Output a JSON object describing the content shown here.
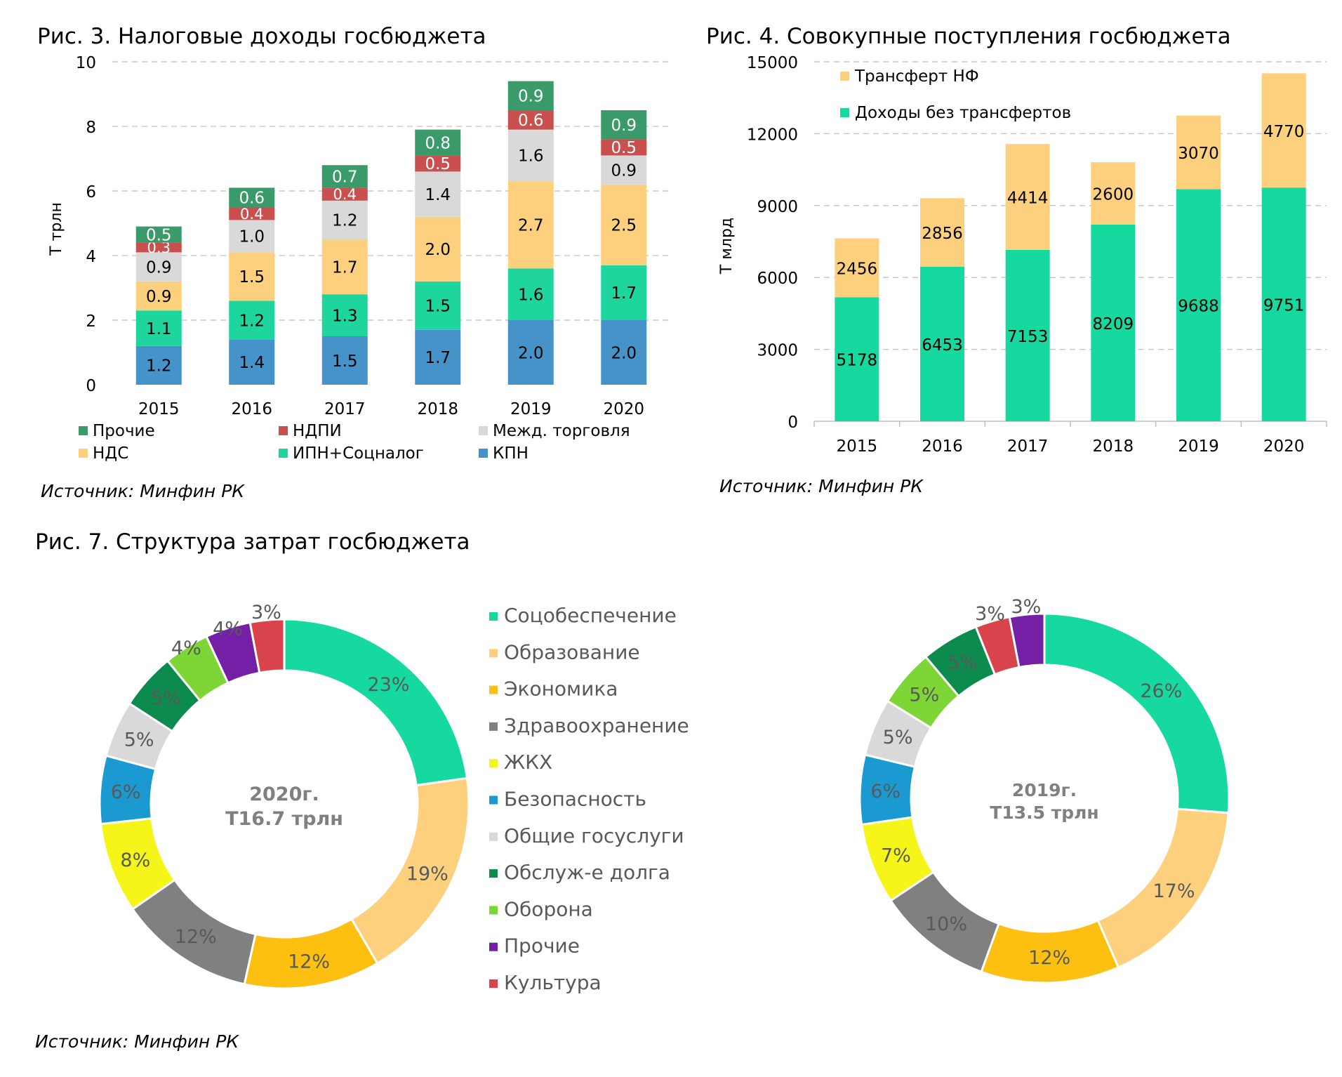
{
  "fig3": {
    "title": "Рис. 3. Налоговые доходы госбюджета",
    "source": "Источник: Минфин РК"
  },
  "fig4": {
    "title": "Рис. 4. Совокупные поступления госбюджета",
    "source": "Источник: Минфин РК"
  },
  "fig7": {
    "title": "Рис. 7. Структура затрат госбюджета",
    "source": "Источник: Минфин РК",
    "donut_2020_center": [
      "2020г.",
      "Т16.7 трлн"
    ],
    "donut_2019_center": [
      "2019г.",
      "Т13.5 трлн"
    ]
  },
  "chart_data": [
    {
      "id": "fig3",
      "type": "bar",
      "stacked": true,
      "title": "Рис. 3. Налоговые доходы госбюджета",
      "ylabel": "Т трлн",
      "xlabel": "",
      "ylim": [
        0,
        10
      ],
      "yticks": [
        0,
        2,
        4,
        6,
        8,
        10
      ],
      "grid": true,
      "legend_position": "bottom",
      "categories": [
        "2015",
        "2016",
        "2017",
        "2018",
        "2019",
        "2020"
      ],
      "series": [
        {
          "name": "КПН",
          "color": "#4593c8",
          "values": [
            1.2,
            1.4,
            1.5,
            1.7,
            2.0,
            2.0
          ]
        },
        {
          "name": "ИПН+Соцналог",
          "color": "#1fd59e",
          "values": [
            1.1,
            1.2,
            1.3,
            1.5,
            1.6,
            1.7
          ]
        },
        {
          "name": "НДС",
          "color": "#fdd07e",
          "values": [
            0.9,
            1.5,
            1.7,
            2.0,
            2.7,
            2.5
          ]
        },
        {
          "name": "Межд. торговля",
          "color": "#d9d9d9",
          "values": [
            0.9,
            1.0,
            1.2,
            1.4,
            1.6,
            0.9
          ]
        },
        {
          "name": "НДПИ",
          "color": "#c9504f",
          "values": [
            0.3,
            0.4,
            0.4,
            0.5,
            0.6,
            0.5
          ]
        },
        {
          "name": "Прочие",
          "color": "#3b9a6a",
          "values": [
            0.5,
            0.6,
            0.7,
            0.8,
            0.9,
            0.9
          ]
        }
      ],
      "legend_order": [
        "Прочие",
        "НДПИ",
        "Межд. торговля",
        "НДС",
        "ИПН+Соцналог",
        "КПН"
      ],
      "label_values": {
        "КПН": [
          "1.2",
          "1.4",
          "1.5",
          "1.7",
          "2.0",
          "2.0"
        ],
        "ИПН+Соцналог": [
          "1.1",
          "1.2",
          "1.3",
          "1.5",
          "1.6",
          "1.7"
        ],
        "НДС": [
          "0.9",
          "1.5",
          "1.7",
          "2.0",
          "2.7",
          "2.5"
        ],
        "Межд. торговля": [
          "0.9",
          "1.0",
          "1.2",
          "1.4",
          "1.6",
          "0.9"
        ],
        "НДПИ": [
          "0.3",
          "0.4",
          "0.4",
          "0.5",
          "0.6",
          "0.5"
        ],
        "Прочие": [
          "0.5",
          "0.6",
          "0.7",
          "0.8",
          "0.9",
          "0.9"
        ]
      }
    },
    {
      "id": "fig4",
      "type": "bar",
      "stacked": true,
      "title": "Рис. 4. Совокупные поступления госбюджета",
      "ylabel": "Т млрд",
      "xlabel": "",
      "ylim": [
        0,
        15000
      ],
      "yticks": [
        0,
        3000,
        6000,
        9000,
        12000,
        15000
      ],
      "grid": true,
      "legend_position": "top-left",
      "categories": [
        "2015",
        "2016",
        "2017",
        "2018",
        "2019",
        "2020"
      ],
      "series": [
        {
          "name": "Доходы без трансфертов",
          "color": "#16d9a0",
          "values": [
            5178,
            6453,
            7153,
            8209,
            9688,
            9751
          ]
        },
        {
          "name": "Трансферт НФ",
          "color": "#fdd07e",
          "values": [
            2456,
            2856,
            4414,
            2600,
            3070,
            4770
          ]
        }
      ],
      "legend_order": [
        "Трансферт НФ",
        "Доходы без трансфертов"
      ]
    },
    {
      "id": "fig7-2020",
      "type": "pie",
      "donut": true,
      "title": "2020г. Т16.7 трлн",
      "categories": [
        "Соцобеспечение",
        "Образование",
        "Экономика",
        "Здравоохранение",
        "ЖКХ",
        "Безопасность",
        "Общие госуслуги",
        "Обслуж-е долга",
        "Оборона",
        "Прочие",
        "Культура"
      ],
      "values": [
        23,
        19,
        12,
        12,
        8,
        6,
        5,
        5,
        4,
        4,
        3
      ],
      "labels": [
        "23%",
        "19%",
        "12%",
        "12%",
        "8%",
        "6%",
        "5%",
        "5%",
        "4%",
        "4%",
        "3%"
      ]
    },
    {
      "id": "fig7-2019",
      "type": "pie",
      "donut": true,
      "title": "2019г. Т13.5 трлн",
      "categories": [
        "Соцобеспечение",
        "Образование",
        "Экономика",
        "Здравоохранение",
        "ЖКХ",
        "Безопасность",
        "Общие госуслуги",
        "Оборона",
        "Обслуж-е долга",
        "Культура",
        "Прочие"
      ],
      "values": [
        26,
        17,
        12,
        10,
        7,
        6,
        5,
        5,
        5,
        3,
        3
      ],
      "labels": [
        "26%",
        "17%",
        "12%",
        "10%",
        "7%",
        "6%",
        "5%",
        "5%",
        "5%",
        "3%",
        "3%"
      ]
    }
  ],
  "fig7_legend": [
    {
      "name": "Соцобеспечение",
      "color": "#16d9a0"
    },
    {
      "name": "Образование",
      "color": "#fdd07e"
    },
    {
      "name": "Экономика",
      "color": "#fdbf10"
    },
    {
      "name": "Здравоохранение",
      "color": "#808080"
    },
    {
      "name": "ЖКХ",
      "color": "#f5f51a"
    },
    {
      "name": "Безопасность",
      "color": "#1b9ad2"
    },
    {
      "name": "Общие госуслуги",
      "color": "#d9d9d9"
    },
    {
      "name": "Обслуж-е долга",
      "color": "#0b8b4e"
    },
    {
      "name": "Оборона",
      "color": "#7dd636"
    },
    {
      "name": "Прочие",
      "color": "#7320a6"
    },
    {
      "name": "Культура",
      "color": "#d9434b"
    }
  ]
}
